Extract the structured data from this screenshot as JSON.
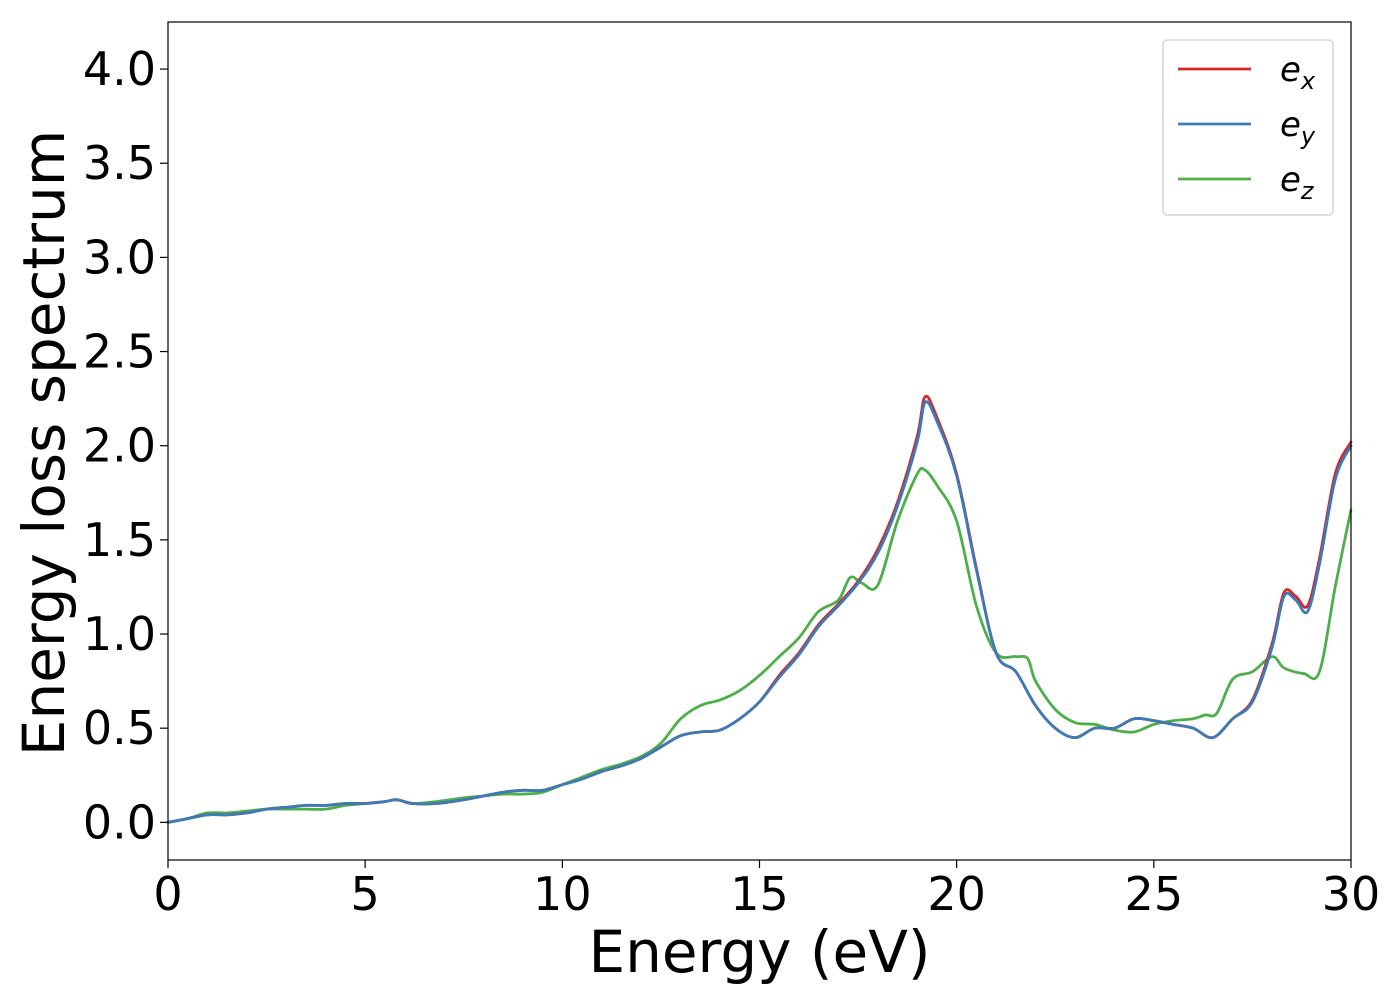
{
  "chart_data": {
    "type": "line",
    "title": "",
    "xlabel": "Energy (eV)",
    "ylabel": "Energy loss spectrum",
    "xlim": [
      0,
      30
    ],
    "ylim": [
      -0.2,
      4.25
    ],
    "xticks": [
      0,
      5,
      10,
      15,
      20,
      25,
      30
    ],
    "xtick_labels": [
      "0",
      "5",
      "10",
      "15",
      "20",
      "25",
      "30"
    ],
    "yticks": [
      0.0,
      0.5,
      1.0,
      1.5,
      2.0,
      2.5,
      3.0,
      3.5,
      4.0
    ],
    "ytick_labels": [
      "0.0",
      "0.5",
      "1.0",
      "1.5",
      "2.0",
      "2.5",
      "3.0",
      "3.5",
      "4.0"
    ],
    "grid": false,
    "legend_position": "top-right",
    "series": [
      {
        "name": "e_x",
        "label_base": "e",
        "label_sub": "x",
        "color": "#d62728",
        "x": [
          0,
          0.5,
          1,
          1.5,
          2,
          2.5,
          3,
          3.5,
          4,
          4.5,
          5,
          5.5,
          5.8,
          6.2,
          6.8,
          7.5,
          8,
          8.5,
          9,
          9.5,
          10,
          10.5,
          11,
          11.5,
          12,
          12.5,
          13,
          13.5,
          14,
          14.5,
          15,
          15.5,
          16,
          16.5,
          17,
          17.5,
          18,
          18.5,
          19,
          19.2,
          19.5,
          20,
          20.5,
          21,
          21.5,
          22,
          22.5,
          23,
          23.5,
          24,
          24.5,
          25,
          25.5,
          26,
          26.5,
          27,
          27.5,
          28,
          28.3,
          28.6,
          28.9,
          29.2,
          29.6,
          30
        ],
        "y": [
          0,
          0.02,
          0.04,
          0.04,
          0.05,
          0.07,
          0.08,
          0.09,
          0.09,
          0.1,
          0.1,
          0.11,
          0.12,
          0.1,
          0.1,
          0.12,
          0.14,
          0.16,
          0.17,
          0.17,
          0.2,
          0.23,
          0.27,
          0.3,
          0.34,
          0.4,
          0.46,
          0.48,
          0.49,
          0.55,
          0.64,
          0.78,
          0.9,
          1.05,
          1.16,
          1.28,
          1.45,
          1.7,
          2.05,
          2.26,
          2.15,
          1.85,
          1.35,
          0.9,
          0.8,
          0.62,
          0.5,
          0.45,
          0.5,
          0.5,
          0.55,
          0.54,
          0.52,
          0.5,
          0.45,
          0.55,
          0.65,
          0.95,
          1.22,
          1.2,
          1.15,
          1.4,
          1.85,
          2.02
        ]
      },
      {
        "name": "e_y",
        "label_base": "e",
        "label_sub": "y",
        "color": "#3a7bb8",
        "x": [
          0,
          0.5,
          1,
          1.5,
          2,
          2.5,
          3,
          3.5,
          4,
          4.5,
          5,
          5.5,
          5.8,
          6.2,
          6.8,
          7.5,
          8,
          8.5,
          9,
          9.5,
          10,
          10.5,
          11,
          11.5,
          12,
          12.5,
          13,
          13.5,
          14,
          14.5,
          15,
          15.5,
          16,
          16.5,
          17,
          17.5,
          18,
          18.5,
          19,
          19.2,
          19.5,
          20,
          20.5,
          21,
          21.5,
          22,
          22.5,
          23,
          23.5,
          24,
          24.5,
          25,
          25.5,
          26,
          26.5,
          27,
          27.5,
          28,
          28.3,
          28.6,
          28.9,
          29.2,
          29.6,
          30
        ],
        "y": [
          0,
          0.02,
          0.04,
          0.04,
          0.05,
          0.07,
          0.08,
          0.09,
          0.09,
          0.1,
          0.1,
          0.11,
          0.12,
          0.1,
          0.1,
          0.12,
          0.14,
          0.16,
          0.17,
          0.17,
          0.2,
          0.23,
          0.27,
          0.3,
          0.34,
          0.4,
          0.46,
          0.48,
          0.49,
          0.55,
          0.64,
          0.77,
          0.89,
          1.04,
          1.15,
          1.27,
          1.43,
          1.68,
          2.02,
          2.23,
          2.13,
          1.84,
          1.34,
          0.9,
          0.8,
          0.62,
          0.5,
          0.45,
          0.5,
          0.5,
          0.55,
          0.54,
          0.52,
          0.5,
          0.45,
          0.55,
          0.64,
          0.93,
          1.2,
          1.18,
          1.12,
          1.37,
          1.82,
          2.0
        ]
      },
      {
        "name": "e_z",
        "label_base": "e",
        "label_sub": "z",
        "color": "#4daf4a",
        "x": [
          0,
          0.5,
          1,
          1.5,
          2,
          2.5,
          3,
          3.5,
          4,
          4.5,
          5,
          5.5,
          5.8,
          6.2,
          6.8,
          7.5,
          8,
          8.5,
          9,
          9.5,
          10,
          10.5,
          11,
          11.5,
          12,
          12.5,
          13,
          13.5,
          14,
          14.5,
          15,
          15.5,
          16,
          16.5,
          17,
          17.3,
          17.6,
          18,
          18.5,
          19,
          19.2,
          19.5,
          20,
          20.5,
          21,
          21.5,
          21.8,
          22,
          22.5,
          23,
          23.5,
          24,
          24.5,
          25,
          25.5,
          26,
          26.3,
          26.6,
          27,
          27.5,
          28,
          28.3,
          28.8,
          29.2,
          29.6,
          30
        ],
        "y": [
          0,
          0.02,
          0.05,
          0.05,
          0.06,
          0.07,
          0.07,
          0.07,
          0.07,
          0.09,
          0.1,
          0.11,
          0.12,
          0.1,
          0.11,
          0.13,
          0.14,
          0.15,
          0.15,
          0.16,
          0.2,
          0.24,
          0.28,
          0.31,
          0.35,
          0.42,
          0.55,
          0.62,
          0.65,
          0.7,
          0.78,
          0.88,
          0.98,
          1.12,
          1.18,
          1.3,
          1.27,
          1.26,
          1.6,
          1.85,
          1.87,
          1.79,
          1.6,
          1.15,
          0.9,
          0.88,
          0.87,
          0.75,
          0.6,
          0.53,
          0.52,
          0.49,
          0.48,
          0.52,
          0.54,
          0.55,
          0.57,
          0.58,
          0.76,
          0.8,
          0.88,
          0.82,
          0.79,
          0.8,
          1.25,
          1.66
        ]
      }
    ]
  }
}
